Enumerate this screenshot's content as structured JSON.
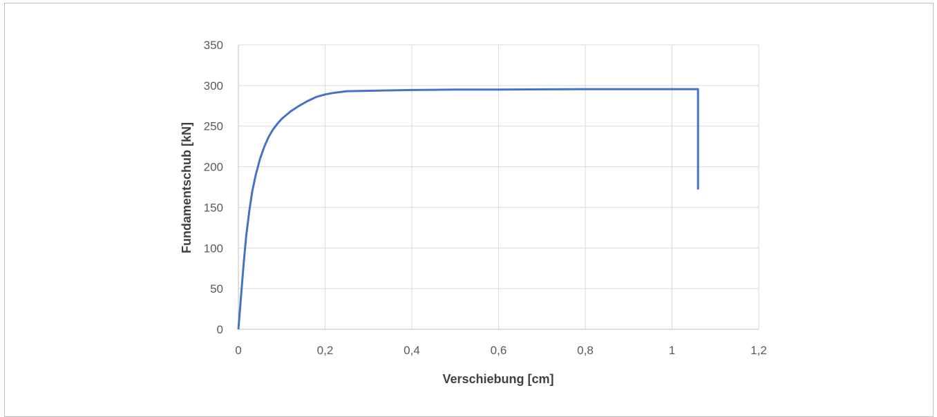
{
  "chart_data": {
    "type": "line",
    "title": "",
    "xlabel": "Verschiebung [cm]",
    "ylabel": "Fundamentschub [kN]",
    "xlim": [
      0,
      1.2
    ],
    "ylim": [
      0,
      350
    ],
    "x_ticks": [
      0,
      0.2,
      0.4,
      0.6,
      0.8,
      1,
      1.2
    ],
    "x_tick_labels": [
      "0",
      "0,2",
      "0,4",
      "0,6",
      "0,8",
      "1",
      "1,2"
    ],
    "y_ticks": [
      0,
      50,
      100,
      150,
      200,
      250,
      300,
      350
    ],
    "y_tick_labels": [
      "0",
      "50",
      "100",
      "150",
      "200",
      "250",
      "300",
      "350"
    ],
    "grid": true,
    "legend": "none",
    "series": [
      {
        "color": "#4472c4",
        "x": [
          0,
          0.006,
          0.012,
          0.018,
          0.025,
          0.032,
          0.04,
          0.05,
          0.06,
          0.07,
          0.08,
          0.09,
          0.1,
          0.12,
          0.14,
          0.16,
          0.18,
          0.2,
          0.22,
          0.25,
          0.3,
          0.4,
          0.5,
          0.6,
          0.8,
          1.0,
          1.06,
          1.06
        ],
        "y": [
          0,
          40,
          80,
          115,
          145,
          170,
          190,
          210,
          225,
          237,
          246,
          253,
          259,
          268,
          275,
          281,
          286,
          289,
          291,
          293,
          293.5,
          294.5,
          295,
          295,
          295.5,
          295.5,
          295.5,
          172
        ]
      }
    ]
  }
}
